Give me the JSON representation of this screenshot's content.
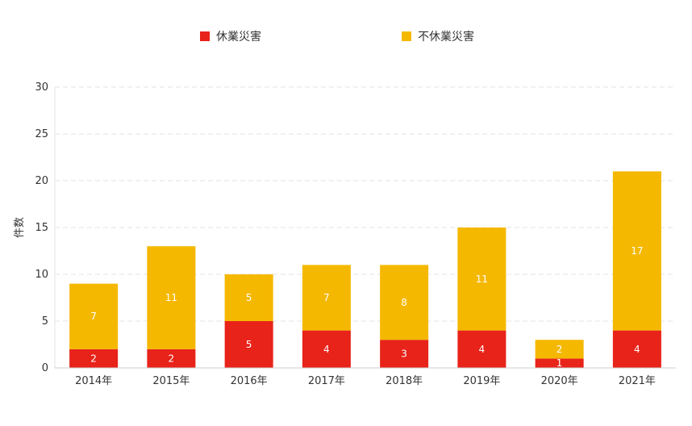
{
  "chart_data": {
    "type": "bar",
    "stacked": true,
    "categories": [
      "2014年",
      "2015年",
      "2016年",
      "2017年",
      "2018年",
      "2019年",
      "2020年",
      "2021年"
    ],
    "series": [
      {
        "name": "休業災害",
        "values": [
          2,
          2,
          5,
          4,
          3,
          4,
          1,
          4
        ],
        "color": "#e8231a"
      },
      {
        "name": "不休業災害",
        "values": [
          7,
          11,
          5,
          7,
          8,
          11,
          2,
          17
        ],
        "color": "#f5b800"
      }
    ],
    "ylabel": "件数",
    "ylim": [
      0,
      30
    ],
    "yticks": [
      0,
      5,
      10,
      15,
      20,
      25,
      30
    ],
    "grid": true,
    "legend_position": "top"
  }
}
